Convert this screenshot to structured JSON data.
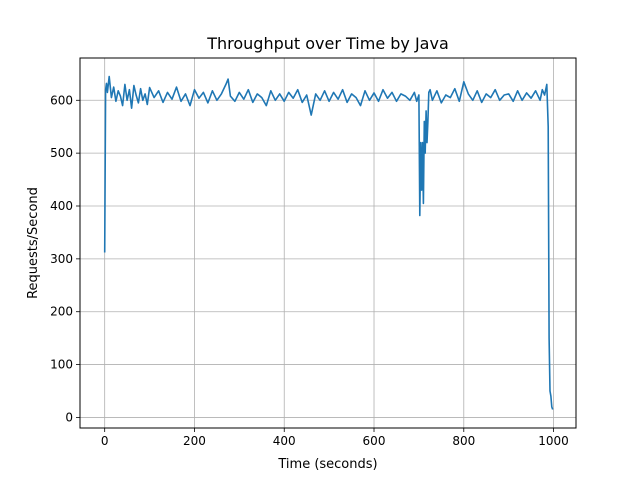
{
  "chart_data": {
    "type": "line",
    "title": "Throughput over Time by Java",
    "xlabel": "Time (seconds)",
    "ylabel": "Requests/Second",
    "xlim": [
      -55,
      1050
    ],
    "ylim": [
      -20,
      680
    ],
    "xticks": [
      0,
      200,
      400,
      600,
      800,
      1000
    ],
    "yticks": [
      0,
      100,
      200,
      300,
      400,
      500,
      600
    ],
    "grid": true,
    "legend": "none",
    "series": [
      {
        "color": "#1f77b4",
        "x": [
          0,
          2,
          4,
          6,
          10,
          15,
          20,
          25,
          30,
          35,
          40,
          45,
          50,
          55,
          60,
          65,
          70,
          75,
          80,
          85,
          90,
          95,
          100,
          110,
          120,
          130,
          140,
          150,
          160,
          170,
          180,
          190,
          200,
          210,
          220,
          230,
          240,
          250,
          260,
          270,
          275,
          280,
          290,
          300,
          310,
          320,
          330,
          340,
          350,
          360,
          370,
          380,
          390,
          400,
          410,
          420,
          430,
          440,
          450,
          460,
          470,
          480,
          490,
          500,
          510,
          520,
          530,
          540,
          550,
          560,
          570,
          580,
          590,
          600,
          610,
          620,
          630,
          640,
          650,
          660,
          670,
          680,
          690,
          695,
          700,
          702,
          704,
          706,
          708,
          710,
          712,
          714,
          716,
          718,
          720,
          722,
          725,
          730,
          740,
          750,
          760,
          770,
          780,
          790,
          800,
          810,
          820,
          830,
          840,
          850,
          860,
          870,
          880,
          890,
          900,
          910,
          920,
          930,
          940,
          950,
          960,
          970,
          975,
          980,
          985,
          988,
          990,
          992,
          994,
          996,
          998
        ],
        "y": [
          312,
          620,
          632,
          615,
          645,
          605,
          625,
          598,
          618,
          608,
          590,
          630,
          600,
          620,
          585,
          628,
          610,
          595,
          622,
          600,
          612,
          592,
          624,
          605,
          618,
          596,
          615,
          602,
          625,
          598,
          612,
          590,
          620,
          604,
          615,
          595,
          618,
          600,
          612,
          630,
          640,
          608,
          598,
          615,
          602,
          620,
          596,
          612,
          605,
          590,
          618,
          600,
          612,
          598,
          615,
          604,
          620,
          596,
          610,
          572,
          612,
          600,
          618,
          598,
          615,
          602,
          620,
          596,
          612,
          605,
          590,
          618,
          600,
          614,
          598,
          620,
          604,
          615,
          598,
          612,
          608,
          600,
          615,
          598,
          610,
          382,
          520,
          430,
          520,
          405,
          560,
          500,
          580,
          520,
          560,
          615,
          620,
          600,
          618,
          595,
          610,
          605,
          622,
          598,
          635,
          612,
          600,
          618,
          596,
          612,
          605,
          620,
          600,
          610,
          612,
          598,
          618,
          600,
          614,
          604,
          618,
          600,
          620,
          610,
          630,
          550,
          150,
          50,
          40,
          20,
          15
        ]
      }
    ]
  }
}
